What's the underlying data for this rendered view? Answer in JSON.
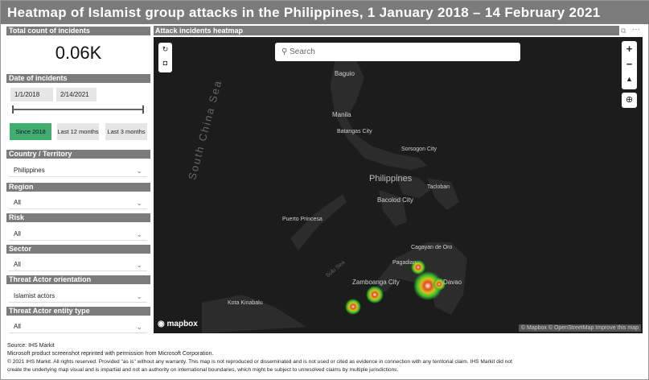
{
  "title": "Heatmap of Islamist group attacks in the Philippines, 1 January 2018 – 14 February 2021",
  "total": {
    "label": "Total count of incidents",
    "value": "0.06K"
  },
  "date": {
    "label": "Date of incidents",
    "start": "1/1/2018",
    "end": "2/14/2021",
    "presets": [
      "Since 2018",
      "Last 12 months",
      "Last 3 months"
    ],
    "active_preset": "Since 2018"
  },
  "filters": [
    {
      "label": "Country / Territory",
      "value": "Philippines"
    },
    {
      "label": "Region",
      "value": "All"
    },
    {
      "label": "Risk",
      "value": "All"
    },
    {
      "label": "Sector",
      "value": "All"
    },
    {
      "label": "Threat Actor orientation",
      "value": "Islamist actors"
    },
    {
      "label": "Threat Actor entity type",
      "value": "All"
    }
  ],
  "map": {
    "title": "Attack incidents heatmap",
    "search_placeholder": "Search",
    "logo": "mapbox",
    "attribution": "© Mapbox © OpenStreetMap Improve this map",
    "seas": [
      "South China Sea",
      "Sulu Sea"
    ],
    "places": [
      "Baguio",
      "Manila",
      "Batangas City",
      "Sorsogon City",
      "Philippines",
      "Tacloban",
      "Bacolod City",
      "Puerto Princesa",
      "Cagayan de Oro",
      "Pagadian",
      "Davao",
      "Zamboanga City",
      "Kota Kinabalu"
    ],
    "accent": "#3fae6e"
  },
  "footer": [
    "Source: IHS Markit",
    "Microsoft product screenshot reprinted with permission from Microsoft Corporation.",
    "© 2021 IHS Markit. All rights reserved. Provided \"as is\" without any warranty. This map is not reproduced or disseminated and is not used or cited as evidence in connection with any territorial claim. IHS Markit did not",
    "create the underlying map visual and is impartial and not an authority on international boundaries, which might be subject to unresolved claims by multiple jurisdictions."
  ]
}
